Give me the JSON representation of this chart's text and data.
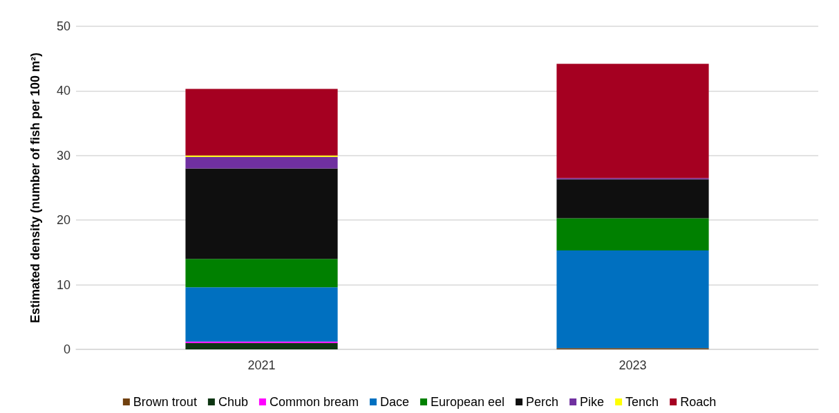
{
  "chart_data": {
    "type": "bar",
    "stacked": true,
    "ylabel": "Estimated density (number of fish per 100 m²)",
    "categories": [
      "2021",
      "2023"
    ],
    "ylim": [
      0,
      50
    ],
    "yticks": [
      0,
      10,
      20,
      30,
      40,
      50
    ],
    "grid": "y",
    "legend": "bottom",
    "series": [
      {
        "name": "Brown trout",
        "color": "#70400f",
        "values": [
          0,
          0.2
        ]
      },
      {
        "name": "Chub",
        "color": "#0d3512",
        "values": [
          1.0,
          0
        ]
      },
      {
        "name": "Common bream",
        "color": "#ff00ff",
        "values": [
          0.2,
          0
        ]
      },
      {
        "name": "Dace",
        "color": "#0070c0",
        "values": [
          8.4,
          15.1
        ]
      },
      {
        "name": "European eel",
        "color": "#008000",
        "values": [
          4.4,
          5.0
        ]
      },
      {
        "name": "Perch",
        "color": "#0f0f0f",
        "values": [
          14.0,
          6.0
        ]
      },
      {
        "name": "Pike",
        "color": "#7030a0",
        "values": [
          1.8,
          0.2
        ]
      },
      {
        "name": "Tench",
        "color": "#ffff00",
        "values": [
          0.2,
          0
        ]
      },
      {
        "name": "Roach",
        "color": "#a50021",
        "values": [
          10.3,
          17.7
        ]
      }
    ]
  }
}
